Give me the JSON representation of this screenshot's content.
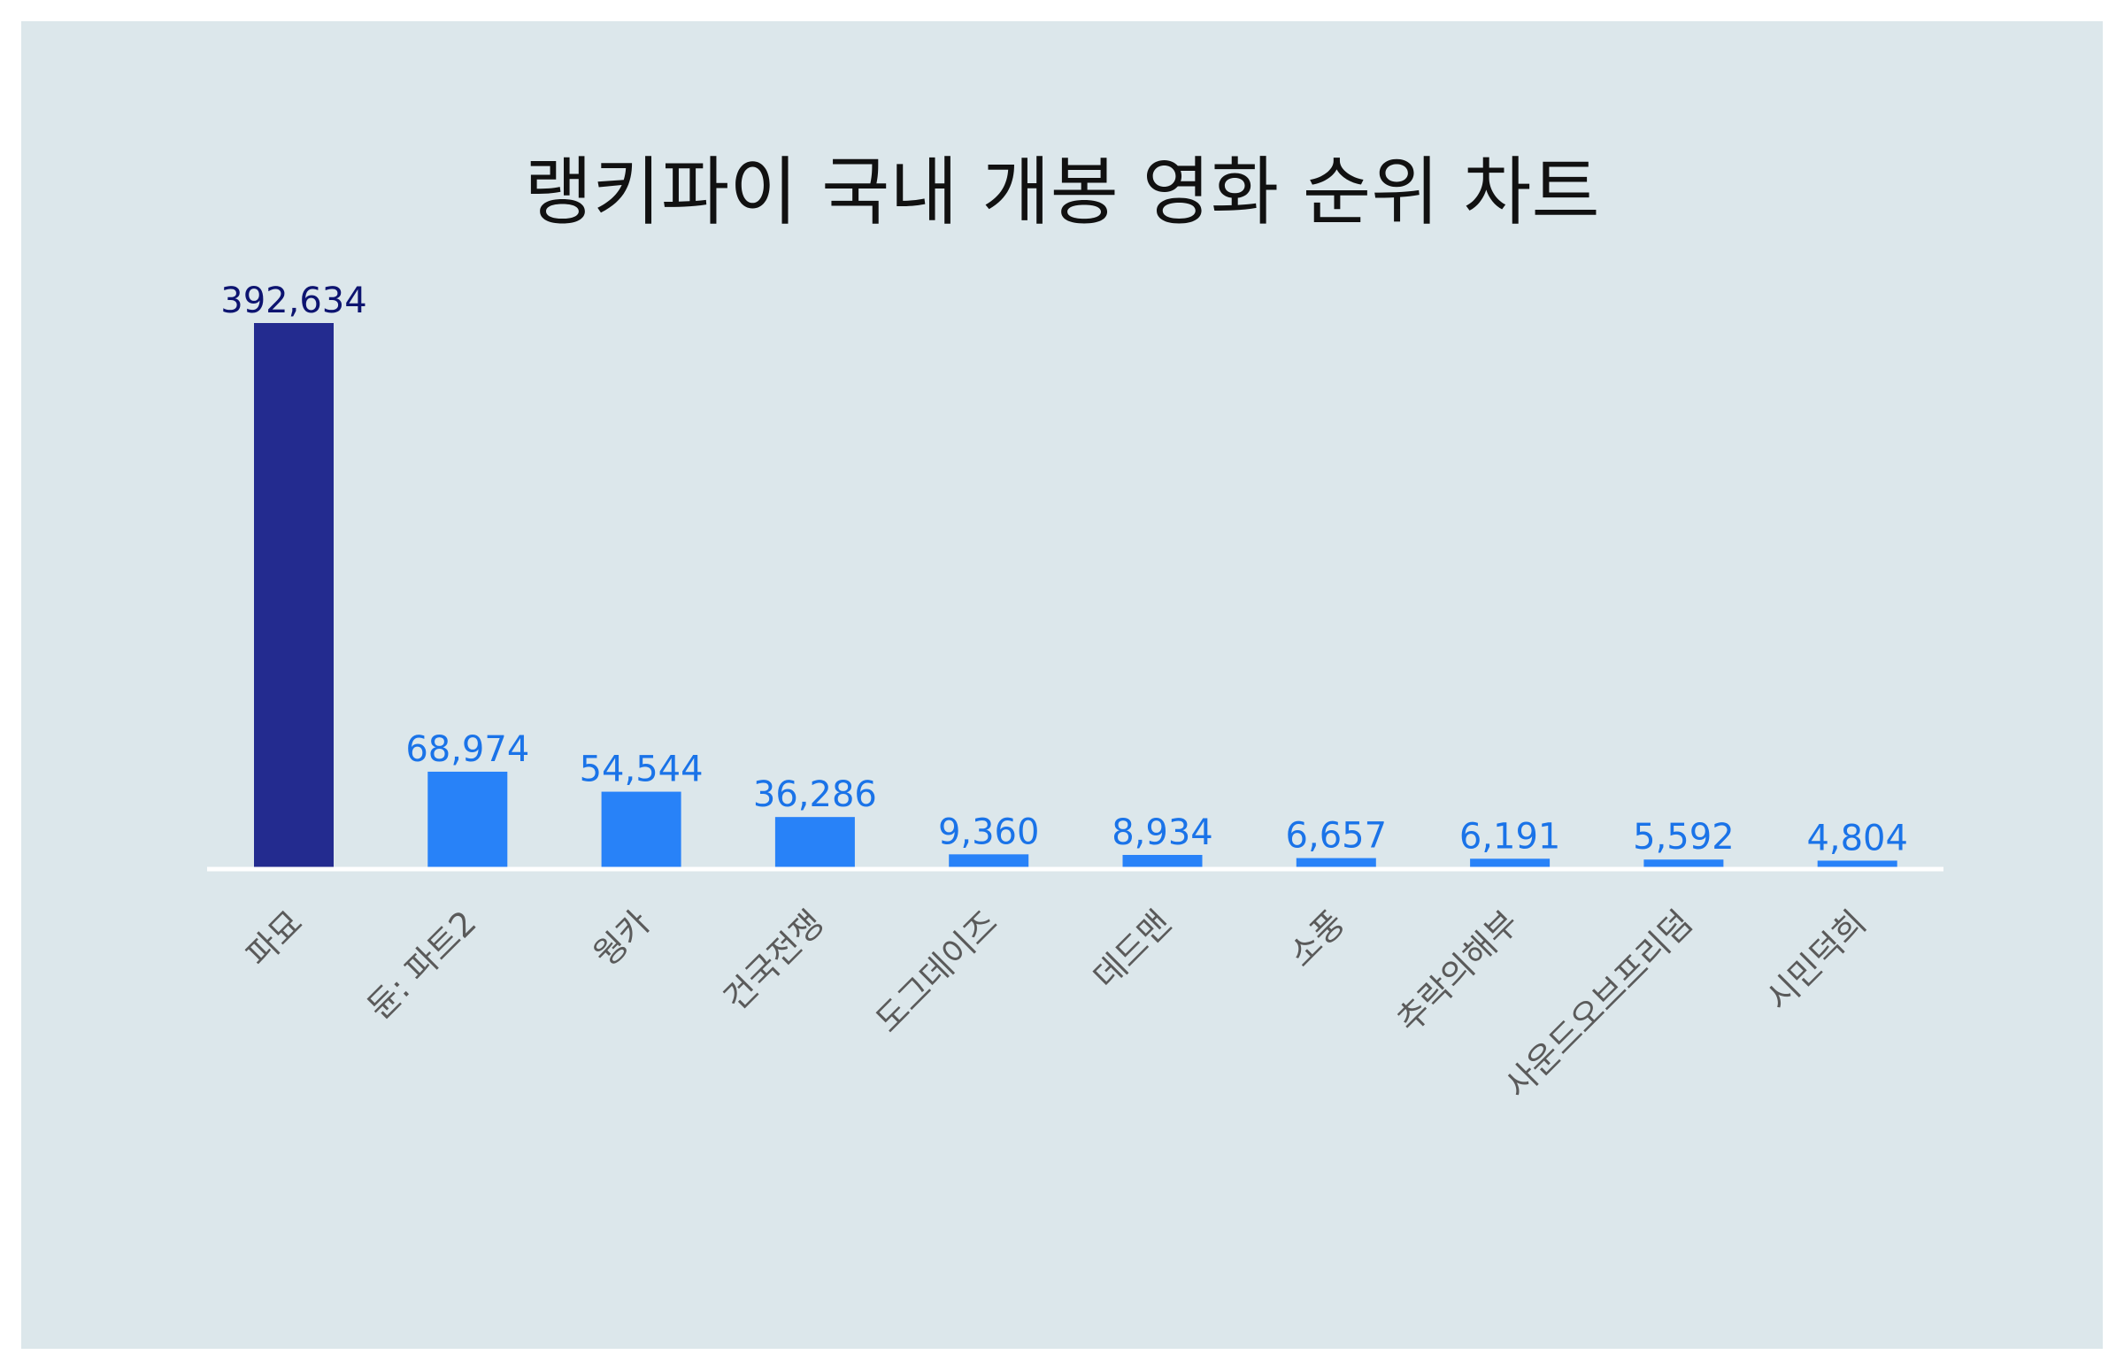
{
  "chart_data": {
    "type": "bar",
    "title": "랭키파이 국내 개봉 영화 순위 차트",
    "categories": [
      "파묘",
      "듄: 파트2",
      "웡카",
      "건국전쟁",
      "도그데이즈",
      "데드맨",
      "소풍",
      "추락의해부",
      "사운드오브프리덤",
      "시민덕희"
    ],
    "values": [
      392634,
      68974,
      54544,
      36286,
      9360,
      8934,
      6657,
      6191,
      5592,
      4804
    ],
    "value_labels": [
      "392,634",
      "68,974",
      "54,544",
      "36,286",
      "9,360",
      "8,934",
      "6,657",
      "6,191",
      "5,592",
      "4,804"
    ],
    "xlabel": "",
    "ylabel": "",
    "ylim": [
      0,
      392634
    ],
    "grid": false,
    "legend": "none",
    "colors": {
      "highlight_bar": "#232b8f",
      "bar": "#2882f8",
      "highlight_label": "#0d1470",
      "label": "#1a73e8",
      "background": "#dce7eb",
      "baseline": "#ffffff"
    }
  }
}
